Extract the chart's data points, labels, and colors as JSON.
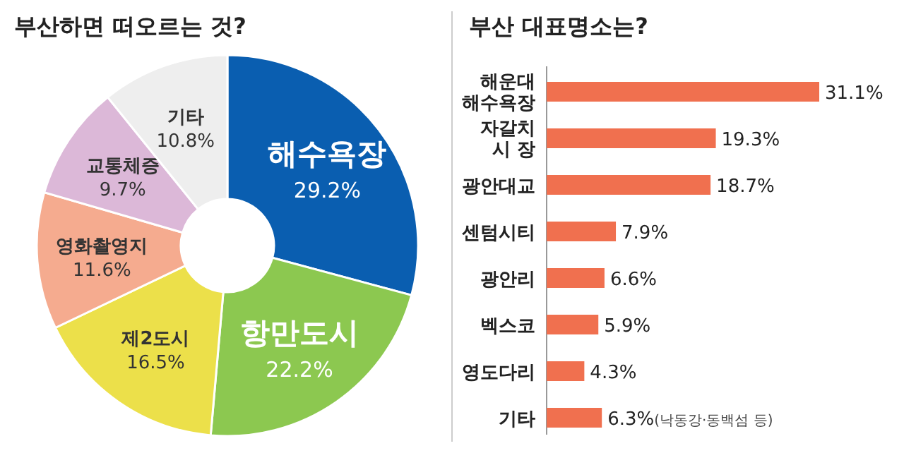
{
  "chart_data": [
    {
      "type": "donut",
      "title": "부산하면 떠오르는 것?",
      "categories": [
        "해수욕장",
        "항만도시",
        "제2도시",
        "영화촬영지",
        "교통체증",
        "기타"
      ],
      "values": [
        29.2,
        22.2,
        16.5,
        11.6,
        9.7,
        10.8
      ],
      "value_labels": [
        "29.2%",
        "22.2%",
        "16.5%",
        "11.6%",
        "9.7%",
        "10.8%"
      ],
      "colors": [
        "#0a5eb0",
        "#8cc850",
        "#ece04a",
        "#f5ab8f",
        "#dcb8d8",
        "#eeeeee"
      ]
    },
    {
      "type": "bar",
      "orientation": "horizontal",
      "title": "부산 대표명소는?",
      "categories": [
        "해운대\n해수욕장",
        "자갈치\n시 장",
        "광안대교",
        "센텀시티",
        "광안리",
        "벡스코",
        "영도다리",
        "기타"
      ],
      "values": [
        31.1,
        19.3,
        18.7,
        7.9,
        6.6,
        5.9,
        4.3,
        6.3
      ],
      "value_labels": [
        "31.1%",
        "19.3%",
        "18.7%",
        "7.9%",
        "6.6%",
        "5.9%",
        "4.3%",
        "6.3%"
      ],
      "color": "#f0704f",
      "annotations": [
        "(낙동강·동백섬 등)"
      ]
    }
  ]
}
